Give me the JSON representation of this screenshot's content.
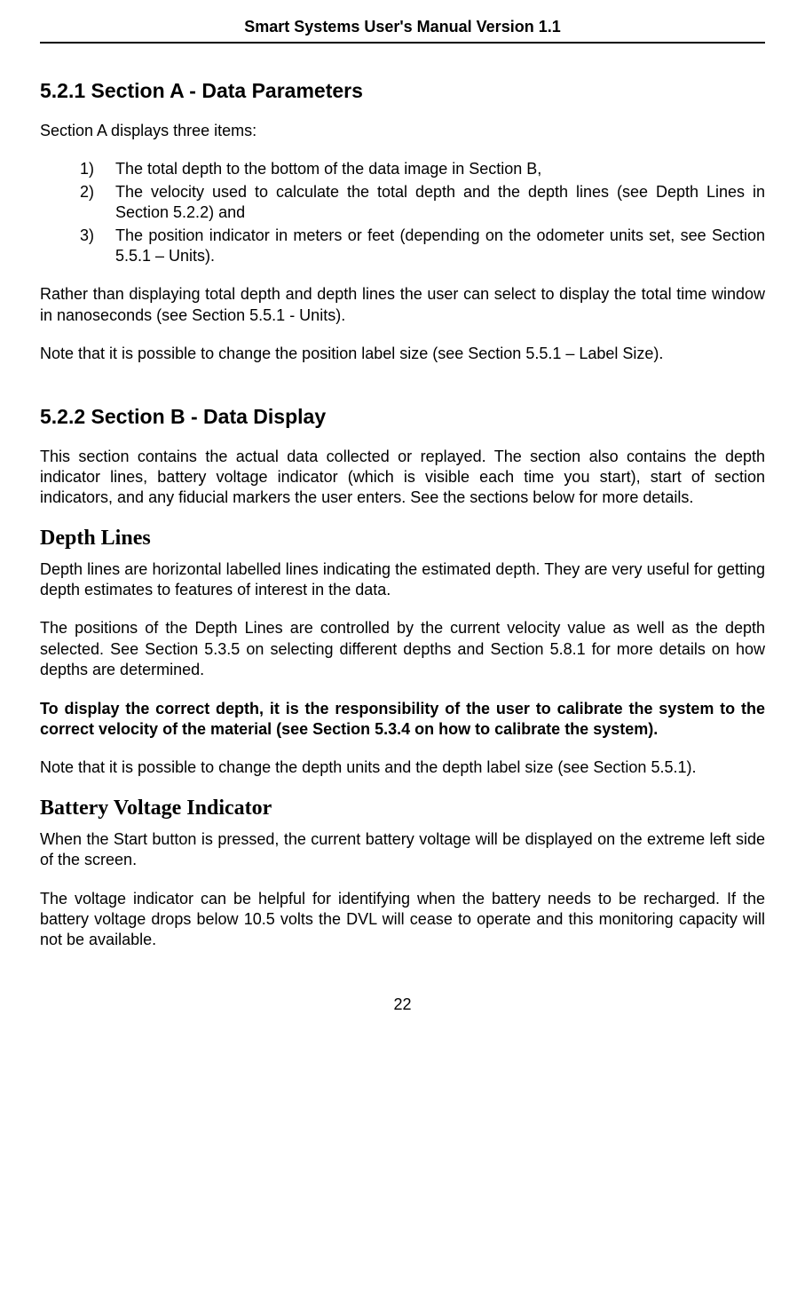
{
  "header": {
    "title": "Smart Systems User's Manual Version 1.1"
  },
  "section_521": {
    "heading": "5.2.1 Section A - Data Parameters",
    "intro": "Section A displays three items:",
    "items": [
      {
        "num": "1)",
        "text": "The total depth to the bottom of the data image in Section B,"
      },
      {
        "num": "2)",
        "text": "The velocity used to calculate the total depth and the depth lines (see Depth Lines in Section 5.2.2) and"
      },
      {
        "num": "3)",
        "text": "The position indicator in meters or feet (depending on the odometer units set, see Section 5.5.1 – Units)."
      }
    ],
    "para1": "Rather than displaying total depth and depth lines the user can select to display the total time window in nanoseconds (see Section 5.5.1 - Units).",
    "para2": "Note that it is possible to change the position label size (see Section 5.5.1 – Label Size)."
  },
  "section_522": {
    "heading": "5.2.2 Section B - Data Display",
    "para1": "This section contains the actual data collected or replayed. The section also contains the depth indicator lines, battery voltage indicator (which is visible each time you start), start of section indicators, and any fiducial markers the user enters. See the sections below for more details."
  },
  "depth_lines": {
    "heading": "Depth Lines",
    "para1": "Depth lines are horizontal labelled lines indicating the estimated depth. They are very useful for getting depth estimates to features of interest in the data.",
    "para2": "The positions of the Depth Lines are controlled by the current velocity value as well as the depth selected. See Section 5.3.5 on selecting different depths and Section 5.8.1 for more details on how depths are determined.",
    "para3_bold": "To display the correct depth, it is the responsibility of the user to calibrate the system to the correct velocity of the material (see Section 5.3.4 on how to calibrate the system).",
    "para4": "Note that it is possible to change the depth units and the depth label size (see Section 5.5.1)."
  },
  "battery": {
    "heading": "Battery Voltage Indicator",
    "para1": "When the Start button is pressed, the current battery voltage will be displayed on the extreme left side of the screen.",
    "para2": "The voltage indicator can be helpful for identifying when the battery needs to be recharged. If the battery voltage drops below 10.5 volts the DVL will cease to operate and this monitoring capacity will not be available."
  },
  "footer": {
    "page_number": "22"
  }
}
